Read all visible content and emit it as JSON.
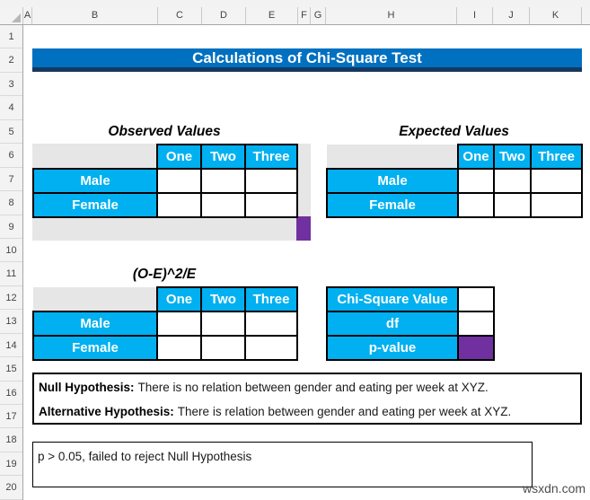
{
  "colors": {
    "banner_bg": "#0070C0",
    "banner_border": "#17375E",
    "cell_blue": "#00B0F0",
    "cell_purple": "#7030A0",
    "cell_gray": "#E7E6E6"
  },
  "grid": {
    "column_headers": [
      "A",
      "B",
      "C",
      "D",
      "E",
      "F",
      "G",
      "H",
      "I",
      "J",
      "K"
    ],
    "row_headers": [
      "1",
      "2",
      "3",
      "4",
      "5",
      "6",
      "7",
      "8",
      "9",
      "10",
      "11",
      "12",
      "13",
      "14",
      "15",
      "16",
      "17",
      "18",
      "19",
      "20"
    ]
  },
  "banner": {
    "title": "Calculations of Chi-Square Test"
  },
  "tables": {
    "observed": {
      "title": "Observed Values",
      "columns": [
        "One",
        "Two",
        "Three"
      ],
      "rows": [
        "Male",
        "Female"
      ],
      "values": [
        [
          "",
          "",
          ""
        ],
        [
          "",
          "",
          ""
        ]
      ]
    },
    "expected": {
      "title": "Expected Values",
      "columns": [
        "One",
        "Two",
        "Three"
      ],
      "rows": [
        "Male",
        "Female"
      ],
      "values": [
        [
          "",
          "",
          ""
        ],
        [
          "",
          "",
          ""
        ]
      ]
    },
    "chi": {
      "title": "(O-E)^2/E",
      "columns": [
        "One",
        "Two",
        "Three"
      ],
      "rows": [
        "Male",
        "Female"
      ],
      "values": [
        [
          "",
          "",
          ""
        ],
        [
          "",
          "",
          ""
        ]
      ]
    },
    "results": {
      "rows": [
        {
          "label": "Chi-Square Value",
          "value": ""
        },
        {
          "label": "df",
          "value": ""
        },
        {
          "label": "p-value",
          "value": ""
        }
      ]
    }
  },
  "hypotheses": {
    "null_label": "Null Hypothesis:",
    "null_text": "There is no relation between gender and eating per week at XYZ.",
    "alt_label": "Alternative Hypothesis:",
    "alt_text": "There is relation between gender and eating per week at XYZ."
  },
  "conclusion": "p > 0.05, failed to reject Null Hypothesis",
  "watermark": "wsxdn.com"
}
